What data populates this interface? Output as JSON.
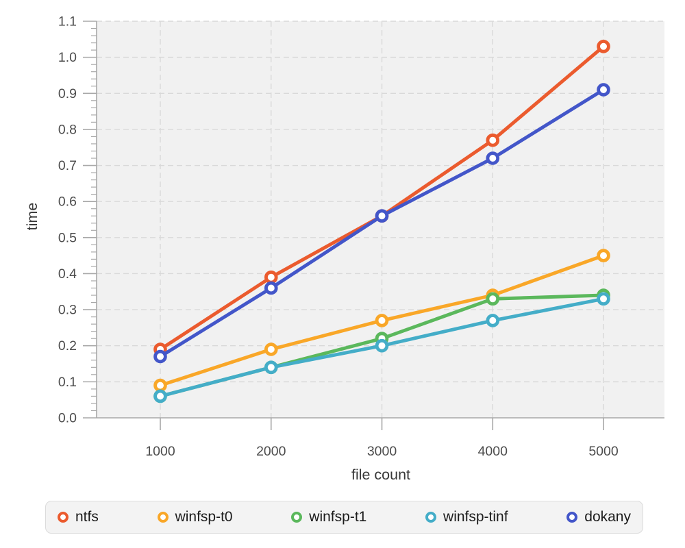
{
  "chart_data": {
    "type": "line",
    "xlabel": "file count",
    "ylabel": "time",
    "x": [
      1000,
      2000,
      3000,
      4000,
      5000
    ],
    "x_tick_labels": [
      "1000",
      "2000",
      "3000",
      "4000",
      "5000"
    ],
    "y_tick_labels": [
      "0.0",
      "0.1",
      "0.2",
      "0.3",
      "0.4",
      "0.5",
      "0.6",
      "0.7",
      "0.8",
      "0.9",
      "1.0",
      "1.1"
    ],
    "xlim": [
      425,
      5550
    ],
    "ylim": [
      0,
      1.1
    ],
    "y_minor_step": 0.02,
    "grid": "dashed",
    "legend_position": "bottom",
    "marker_style": "open-circle",
    "series": [
      {
        "name": "ntfs",
        "color": "#eb5b2e",
        "values": [
          0.19,
          0.39,
          0.56,
          0.77,
          1.03
        ]
      },
      {
        "name": "winfsp-t0",
        "color": "#f9a728",
        "values": [
          0.09,
          0.19,
          0.27,
          0.34,
          0.45
        ]
      },
      {
        "name": "winfsp-t1",
        "color": "#5bb85c",
        "values": [
          0.06,
          0.14,
          0.22,
          0.33,
          0.34
        ]
      },
      {
        "name": "winfsp-tinf",
        "color": "#44adc8",
        "values": [
          0.06,
          0.14,
          0.2,
          0.27,
          0.33
        ]
      },
      {
        "name": "dokany",
        "color": "#4356c9",
        "values": [
          0.17,
          0.36,
          0.56,
          0.72,
          0.91
        ]
      }
    ]
  },
  "style": {
    "page_bg": "#ffffff",
    "plot_bg": "#f1f1f1",
    "grid_color": "#d9d9d9",
    "axis_color": "#a8a8a8",
    "tick_label_color": "#4c4c4c",
    "axis_title_color": "#383838",
    "legend_bg": "#f3f3f3",
    "legend_border": "#dbdbdb",
    "legend_text_color": "#1c1c1c",
    "marker_fill": "#ffffff"
  }
}
